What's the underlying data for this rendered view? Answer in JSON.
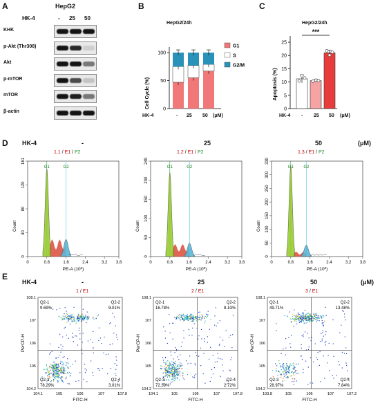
{
  "panels": {
    "A": "A",
    "B": "B",
    "C": "C",
    "D": "D",
    "E": "E"
  },
  "panelA": {
    "title": "HepG2",
    "treatment_label": "HK-4",
    "doses": [
      "-",
      "25",
      "50"
    ],
    "rows": [
      "KHK",
      "p-Akt (Thr308)",
      "Akt",
      "p-mTOR",
      "mTOR",
      "β-actin"
    ]
  },
  "panelB": {
    "title": "HepG2/24h",
    "ylabel": "Cell Cycle (%)",
    "yticks": [
      "0",
      "50",
      "100"
    ],
    "treatment_label": "HK-4",
    "doses": [
      "-",
      "25",
      "50"
    ],
    "unit": "(μM)",
    "legend": [
      "G1",
      "S",
      "G2/M"
    ]
  },
  "panelC": {
    "title": "HepG2/24h",
    "ylabel": "Apoptosis (%)",
    "yticks": [
      "0",
      "5",
      "10",
      "15",
      "20",
      "25"
    ],
    "treatment_label": "HK-4",
    "doses": [
      "-",
      "25",
      "50"
    ],
    "unit": "(μM)",
    "significance": "***"
  },
  "panelD": {
    "treatment_label": "HK-4",
    "doses": [
      "-",
      "25",
      "50"
    ],
    "unit": "(μM)",
    "xlabel": "PE-A (10",
    "xlabel_exp": "6",
    "xlabel_close": ")",
    "ylabel": "Count",
    "xticks": [
      "0",
      "0.8",
      "1.6",
      "2.4",
      "3.2",
      "3.8"
    ],
    "peak_labels": [
      "G1",
      "G2"
    ],
    "plots": [
      {
        "header_num": "1.1",
        "gate_1": "E1",
        "gate_2": "P2",
        "yticks": [
          "0",
          "40",
          "80",
          "120",
          "161"
        ]
      },
      {
        "header_num": "1.2",
        "gate_1": "E1",
        "gate_2": "P2",
        "yticks": [
          "0",
          "50",
          "100",
          "150",
          "200",
          "249"
        ]
      },
      {
        "header_num": "1.3",
        "gate_1": "E1",
        "gate_2": "P2",
        "yticks": [
          "0",
          "50",
          "100",
          "150",
          "200",
          "250",
          "300",
          "330"
        ]
      }
    ]
  },
  "panelE": {
    "treatment_label": "HK-4",
    "doses": [
      "-",
      "25",
      "50"
    ],
    "unit": "(μM)",
    "xlabel": "FITC-H",
    "ylabel": "PerCP-H",
    "plots": [
      {
        "header_num": "1",
        "gate": "E1",
        "q1": "Q2-1",
        "q1v": "9.69%",
        "q2": "Q2-2",
        "q2v": "9.01%",
        "q3": "Q2-3",
        "q3v": "78.29%",
        "q4": "Q2-4",
        "q4v": "3.01%",
        "xt": [
          "10^4.1",
          "10^5",
          "10^6",
          "10^7",
          "10^7.8"
        ],
        "yt": [
          "10^4.2",
          "10^5",
          "10^6",
          "10^7",
          "10^8.1"
        ]
      },
      {
        "header_num": "2",
        "gate": "E1",
        "q1": "Q2-1",
        "q1v": "16.78%",
        "q2": "Q2-2",
        "q2v": "8.10%",
        "q3": "Q2-3",
        "q3v": "72.39%",
        "q4": "Q2-4",
        "q4v": "2.72%",
        "xt": [
          "10^4.1",
          "10^5",
          "10^6",
          "10^7",
          "10^7.8"
        ],
        "yt": [
          "10^4.2",
          "10^5",
          "10^6",
          "10^7",
          "10^8.1"
        ]
      },
      {
        "header_num": "3",
        "gate": "E1",
        "q1": "Q2-1",
        "q1v": "49.71%",
        "q2": "Q2-2",
        "q2v": "13.48%",
        "q3": "Q2-3",
        "q3v": "28.97%",
        "q4": "Q2-4",
        "q4v": "7.84%",
        "xt": [
          "10^3.8",
          "10^5",
          "10^6",
          "10^7",
          "10^7.3"
        ],
        "yt": [
          "10^4.2",
          "10^5",
          "10^6",
          "10^7",
          "10^8.1"
        ]
      }
    ]
  },
  "colors": {
    "g1": "#f07878",
    "s": "#ffffff",
    "g2m": "#2a92b8",
    "apop_ctrl": "#ffffff",
    "apop_25": "#f5a3a3",
    "apop_50": "#e83b3b"
  },
  "chart_data": [
    {
      "type": "bar",
      "stacked": true,
      "title": "HepG2/24h",
      "ylabel": "Cell Cycle (%)",
      "categories": [
        "-",
        "25",
        "50"
      ],
      "ylim": [
        0,
        110
      ],
      "series": [
        {
          "name": "G1",
          "values": [
            47,
            55,
            67
          ]
        },
        {
          "name": "S",
          "values": [
            28,
            22,
            12
          ]
        },
        {
          "name": "G2/M",
          "values": [
            25,
            23,
            21
          ]
        }
      ]
    },
    {
      "type": "bar",
      "title": "HepG2/24h",
      "ylabel": "Apoptosis (%)",
      "categories": [
        "-",
        "25",
        "50"
      ],
      "ylim": [
        0,
        25
      ],
      "series": [
        {
          "values": [
            11.2,
            10.5,
            21.0
          ]
        }
      ],
      "errors": [
        1.5,
        0.5,
        1.0
      ],
      "significance": "***"
    }
  ]
}
